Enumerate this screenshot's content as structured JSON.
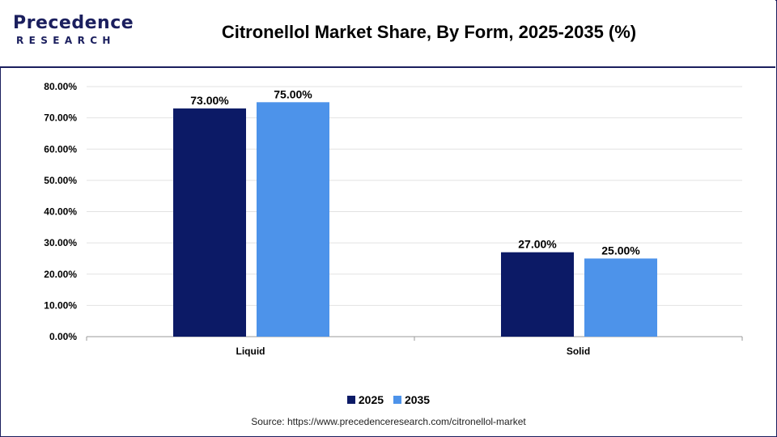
{
  "logo": {
    "top": "recedence",
    "p": "P",
    "bottom": "RESEARCH",
    "color": "#1b1f5e"
  },
  "title": "Citronellol Market Share, By Form, 2025-2035 (%)",
  "source": "Source: https://www.precedenceresearch.com/citronellol-market",
  "chart_data": {
    "type": "bar",
    "categories": [
      "Liquid",
      "Solid"
    ],
    "series": [
      {
        "name": "2025",
        "values": [
          73.0,
          27.0
        ],
        "color": "#0c1a66"
      },
      {
        "name": "2035",
        "values": [
          75.0,
          25.0
        ],
        "color": "#4d93ea"
      }
    ],
    "value_labels": [
      [
        "73.00%",
        "27.00%"
      ],
      [
        "75.00%",
        "25.00%"
      ]
    ],
    "ylim": [
      0,
      80
    ],
    "yticks": [
      "0.00%",
      "10.00%",
      "20.00%",
      "30.00%",
      "40.00%",
      "50.00%",
      "60.00%",
      "70.00%",
      "80.00%"
    ],
    "ytick_values": [
      0,
      10,
      20,
      30,
      40,
      50,
      60,
      70,
      80
    ],
    "grid": true,
    "legend": "bottom-center"
  }
}
